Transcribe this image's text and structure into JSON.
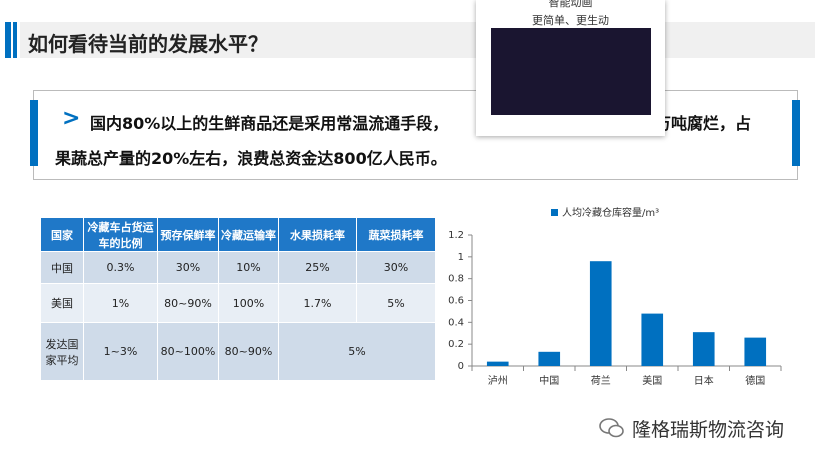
{
  "header": {
    "title": "如何看待当前的发展水平？"
  },
  "callout": {
    "line1": "国内80%以上的生鲜商品还是采用常温流通手段，",
    "line1_tail": "万吨腐烂，占",
    "line2": "果蔬总产量的20%左右，浪费总资金达800亿人民币。"
  },
  "popup": {
    "title": "智能动画",
    "subtitle": "更简单、更生动"
  },
  "table": {
    "header": [
      "国家",
      "冷藏车占货运车的比例",
      "预存保鲜率",
      "冷藏运输率",
      "水果损耗率",
      "蔬菜损耗率"
    ],
    "rows": [
      [
        "中国",
        "0.3%",
        "30%",
        "10%",
        "25%",
        "30%"
      ],
      [
        "美国",
        "1%",
        "80~90%",
        "100%",
        "1.7%",
        "5%"
      ],
      [
        "发达国家平均",
        "1~3%",
        "80~100%",
        "80~90%",
        "5%"
      ]
    ]
  },
  "chart_data": {
    "type": "bar",
    "categories": [
      "泸州",
      "中国",
      "荷兰",
      "美国",
      "日本",
      "德国"
    ],
    "series": [
      {
        "name": "人均冷藏仓库容量/m³",
        "color": "#0070c0",
        "values": [
          0.04,
          0.13,
          0.96,
          0.48,
          0.31,
          0.26
        ]
      }
    ],
    "ylim": [
      0,
      1.2
    ],
    "yticks": [
      0,
      0.2,
      0.4,
      0.6,
      0.8,
      1,
      1.2
    ],
    "legend": "top"
  },
  "watermark": {
    "text": "隆格瑞斯物流咨询"
  }
}
